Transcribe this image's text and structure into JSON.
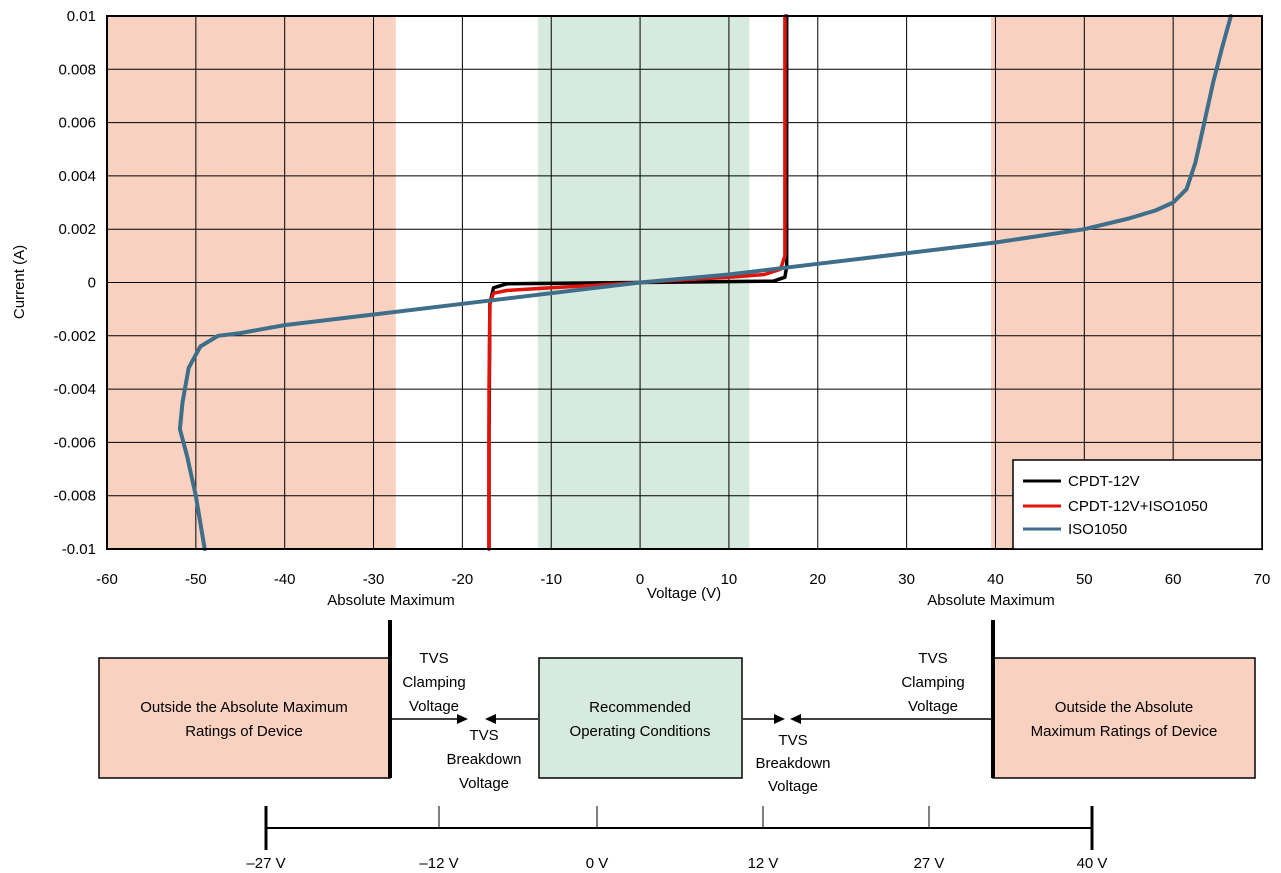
{
  "chart_data": {
    "type": "line",
    "xlabel": "Voltage (V)",
    "ylabel": "Current (A)",
    "xlim": [
      -60,
      70
    ],
    "ylim": [
      -0.01,
      0.01
    ],
    "x_ticks": [
      "-60",
      "-50",
      "-40",
      "-30",
      "-20",
      "-10",
      "0",
      "10",
      "20",
      "30",
      "40",
      "50",
      "60",
      "70"
    ],
    "y_ticks": [
      "-0.01",
      "-0.008",
      "-0.006",
      "-0.004",
      "-0.002",
      "0",
      "0.002",
      "0.004",
      "0.006",
      "0.008",
      "0.01"
    ],
    "grid": true,
    "legend_position": "bottom-right",
    "regions": [
      {
        "x": [
          -60,
          -27.5
        ],
        "color": "#f9d1c0"
      },
      {
        "x": [
          -11.5,
          12.3
        ],
        "color": "#d6eadf"
      },
      {
        "x": [
          39.5,
          70
        ],
        "color": "#f9d1c0"
      }
    ],
    "series": [
      {
        "name": "CPDT-12V",
        "color": "#000000",
        "x": [
          -17,
          -17,
          -16.9,
          -16.5,
          -15,
          0,
          15,
          16.3,
          16.5,
          16.5
        ],
        "y": [
          -0.01,
          -0.006,
          -0.0008,
          -0.0002,
          -5e-05,
          0,
          5e-05,
          0.0002,
          0.0006,
          0.01
        ]
      },
      {
        "name": "CPDT-12V+ISO1050",
        "color": "#e3120b",
        "x": [
          -17,
          -17,
          -16.9,
          -16.5,
          -15,
          -10,
          -5,
          0,
          5,
          10,
          14,
          15.8,
          16.3,
          16.3
        ],
        "y": [
          -0.01,
          -0.004,
          -0.0008,
          -0.0004,
          -0.0003,
          -0.0002,
          -0.0001,
          0,
          0.0001,
          0.0002,
          0.0003,
          0.0005,
          0.001,
          0.01
        ]
      },
      {
        "name": "ISO1050",
        "color": "#3e6e8a",
        "x": [
          -49,
          -50,
          -51,
          -51.8,
          -51.5,
          -50.8,
          -49.5,
          -47.5,
          -45,
          -40,
          -30,
          -20,
          -10,
          0,
          10,
          20,
          30,
          40,
          50,
          55,
          58,
          60,
          61.5,
          62.5,
          63.5,
          64.5,
          65.5,
          66.5
        ],
        "y": [
          -0.01,
          -0.008,
          -0.0065,
          -0.0055,
          -0.0045,
          -0.0032,
          -0.0024,
          -0.002,
          -0.0019,
          -0.0016,
          -0.0012,
          -0.0008,
          -0.0004,
          0,
          0.0003,
          0.0007,
          0.0011,
          0.0015,
          0.002,
          0.0024,
          0.0027,
          0.003,
          0.0035,
          0.0045,
          0.006,
          0.0075,
          0.0088,
          0.01
        ]
      }
    ],
    "annotations": [
      "Absolute Maximum",
      "Absolute Maximum"
    ]
  },
  "diagram": {
    "boxes": [
      {
        "text": [
          "Outside the Absolute Maximum",
          "Ratings of Device"
        ],
        "color": "#f9d1c0"
      },
      {
        "text": [
          "Recommended",
          "Operating Conditions"
        ],
        "color": "#d6eadf"
      },
      {
        "text": [
          "Outside the Absolute",
          "Maximum Ratings of Device"
        ],
        "color": "#f9d1c0"
      }
    ],
    "left_clamp": [
      "TVS",
      "Clamping",
      "Voltage"
    ],
    "left_breakdown": [
      "TVS",
      "Breakdown",
      "Voltage"
    ],
    "right_breakdown": [
      "TVS",
      "Breakdown",
      "Voltage"
    ],
    "right_clamp": [
      "TVS",
      "Clamping",
      "Voltage"
    ]
  },
  "scale": {
    "ticks": [
      "–27 V",
      "–12 V",
      "0 V",
      "12 V",
      "27 V",
      "40 V"
    ]
  }
}
